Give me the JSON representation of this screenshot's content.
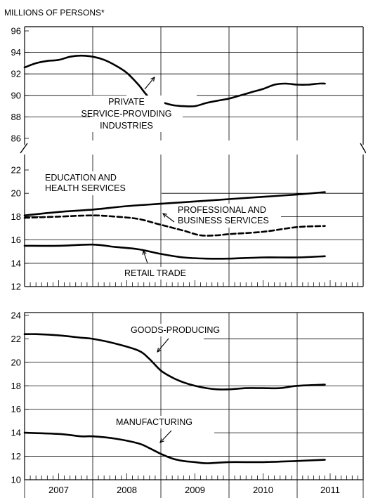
{
  "chart_data": {
    "type": "line",
    "ylabel": "MILLIONS OF PERSONS*",
    "years": [
      "2007",
      "2008",
      "2009",
      "2010",
      "2011"
    ],
    "panels": [
      {
        "id": "private",
        "ylim": [
          86,
          96
        ],
        "yticks": [
          86,
          88,
          90,
          92,
          94,
          96
        ],
        "series": [
          {
            "name": "PRIVATE SERVICE-PROVIDING INDUSTRIES",
            "style": "solid",
            "x": [
              2007.0,
              2007.17,
              2007.33,
              2007.5,
              2007.67,
              2007.83,
              2008.0,
              2008.17,
              2008.33,
              2008.5,
              2008.67,
              2008.83,
              2009.0,
              2009.17,
              2009.33,
              2009.5,
              2009.67,
              2009.83,
              2010.0,
              2010.17,
              2010.33,
              2010.5,
              2010.67,
              2010.83,
              2011.0,
              2011.17,
              2011.33,
              2011.42
            ],
            "values": [
              92.6,
              93.0,
              93.2,
              93.3,
              93.6,
              93.7,
              93.6,
              93.3,
              92.8,
              92.1,
              91.0,
              89.8,
              89.4,
              89.1,
              89.0,
              89.0,
              89.3,
              89.5,
              89.7,
              90.0,
              90.3,
              90.6,
              91.0,
              91.1,
              91.0,
              91.0,
              91.1,
              91.1
            ]
          }
        ],
        "annotations": [
          {
            "id": "private-label",
            "lines": [
              "PRIVATE",
              "SERVICE-PROVIDING",
              "INDUSTRIES"
            ]
          }
        ]
      },
      {
        "id": "services",
        "ylim": [
          12,
          22
        ],
        "yticks": [
          12,
          14,
          16,
          18,
          20,
          22
        ],
        "series": [
          {
            "name": "EDUCATION AND HEALTH SERVICES",
            "style": "solid",
            "x": [
              2007.0,
              2007.5,
              2008.0,
              2008.5,
              2009.0,
              2009.5,
              2010.0,
              2010.5,
              2011.0,
              2011.42
            ],
            "values": [
              18.1,
              18.4,
              18.6,
              18.9,
              19.1,
              19.3,
              19.5,
              19.7,
              19.9,
              20.1
            ]
          },
          {
            "name": "PROFESSIONAL AND BUSINESS SERVICES",
            "style": "dashed",
            "x": [
              2007.0,
              2007.5,
              2008.0,
              2008.33,
              2008.67,
              2009.0,
              2009.33,
              2009.58,
              2009.83,
              2010.0,
              2010.5,
              2011.0,
              2011.42
            ],
            "values": [
              17.9,
              18.0,
              18.1,
              18.0,
              17.8,
              17.3,
              16.8,
              16.4,
              16.4,
              16.5,
              16.7,
              17.1,
              17.2
            ]
          },
          {
            "name": "RETAIL TRADE",
            "style": "solid",
            "x": [
              2007.0,
              2007.5,
              2008.0,
              2008.33,
              2008.67,
              2009.0,
              2009.33,
              2009.67,
              2010.0,
              2010.5,
              2011.0,
              2011.42
            ],
            "values": [
              15.5,
              15.5,
              15.6,
              15.4,
              15.2,
              14.8,
              14.5,
              14.4,
              14.4,
              14.5,
              14.5,
              14.6
            ]
          }
        ],
        "annotations": [
          {
            "id": "edu-label",
            "lines": [
              "EDUCATION AND",
              "HEALTH SERVICES"
            ]
          },
          {
            "id": "prof-label",
            "lines": [
              "PROFESSIONAL AND",
              "BUSINESS SERVICES"
            ]
          },
          {
            "id": "retail-label",
            "lines": [
              "RETAIL TRADE"
            ]
          }
        ]
      },
      {
        "id": "goods",
        "ylim": [
          10,
          24
        ],
        "yticks": [
          10,
          12,
          14,
          16,
          18,
          20,
          22,
          24
        ],
        "series": [
          {
            "name": "GOODS-PRODUCING",
            "style": "solid",
            "x": [
              2007.0,
              2007.17,
              2007.5,
              2007.83,
              2008.0,
              2008.33,
              2008.67,
              2008.83,
              2009.0,
              2009.17,
              2009.33,
              2009.5,
              2009.67,
              2009.83,
              2010.0,
              2010.25,
              2010.5,
              2010.75,
              2011.0,
              2011.42
            ],
            "values": [
              22.4,
              22.4,
              22.3,
              22.1,
              22.0,
              21.6,
              21.0,
              20.3,
              19.3,
              18.7,
              18.3,
              18.0,
              17.8,
              17.7,
              17.7,
              17.8,
              17.8,
              17.8,
              18.0,
              18.1
            ]
          },
          {
            "name": "MANUFACTURING",
            "style": "solid",
            "x": [
              2007.0,
              2007.5,
              2007.83,
              2008.0,
              2008.33,
              2008.67,
              2008.83,
              2009.0,
              2009.17,
              2009.33,
              2009.5,
              2009.67,
              2010.0,
              2010.5,
              2011.0,
              2011.42
            ],
            "values": [
              14.0,
              13.9,
              13.7,
              13.7,
              13.5,
              13.1,
              12.7,
              12.2,
              11.8,
              11.6,
              11.5,
              11.4,
              11.5,
              11.5,
              11.6,
              11.7
            ]
          }
        ],
        "annotations": [
          {
            "id": "goods-label",
            "lines": [
              "GOODS-PRODUCING"
            ]
          },
          {
            "id": "mfg-label",
            "lines": [
              "MANUFACTURING"
            ]
          }
        ]
      }
    ]
  }
}
